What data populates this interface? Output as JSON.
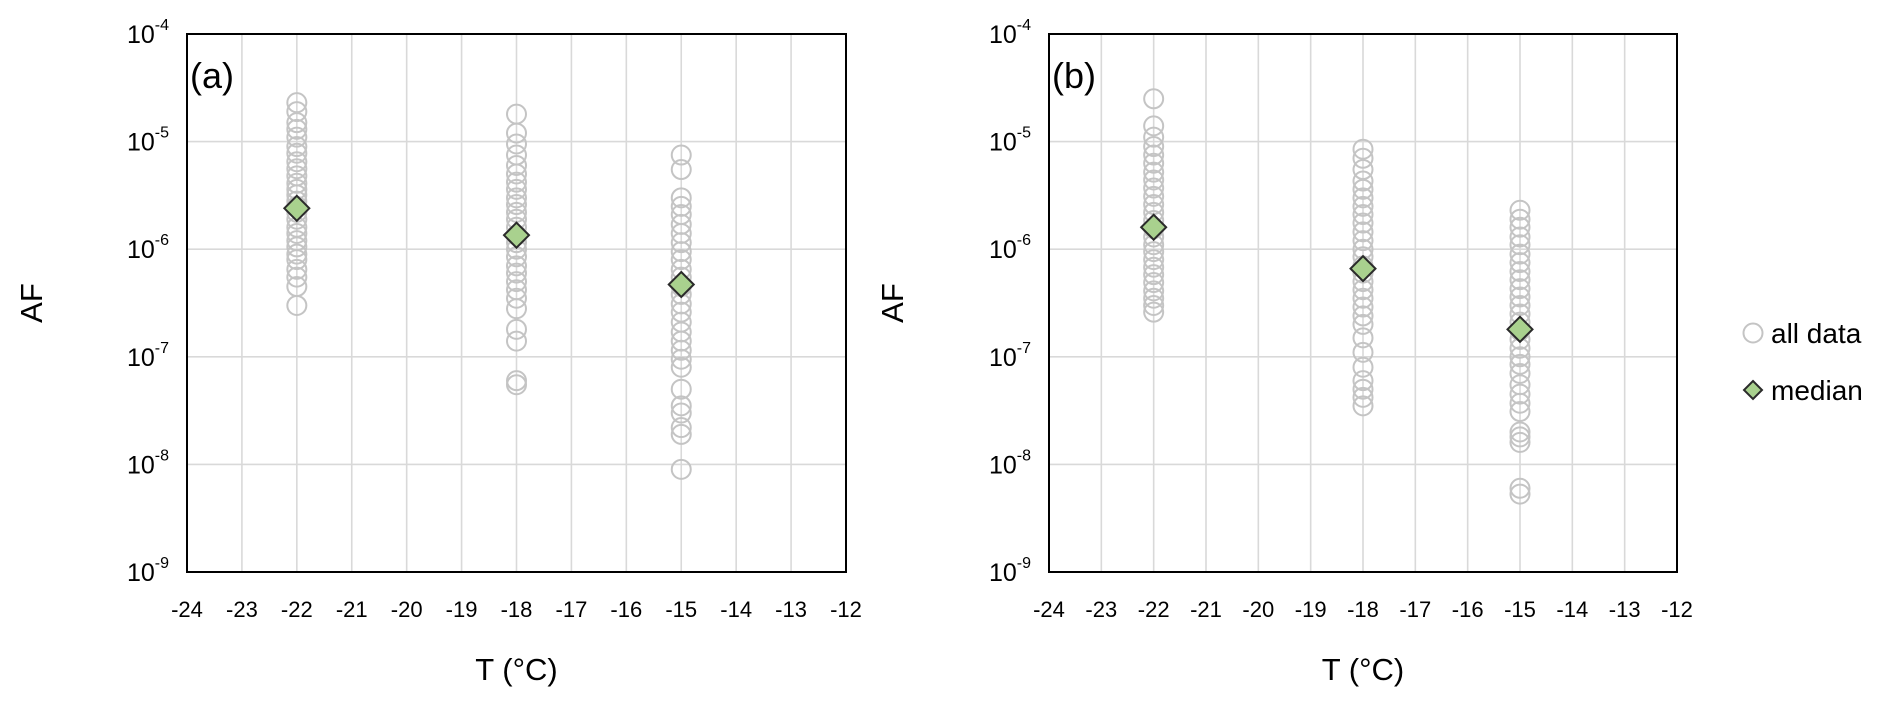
{
  "chart_data": [
    {
      "type": "scatter",
      "panel_label": "(a)",
      "xlabel": "T (°C)",
      "ylabel": "AF",
      "xlim": [
        -24,
        -12
      ],
      "ylim": [
        1e-09,
        0.0001
      ],
      "yscale": "log",
      "grid": true,
      "x_ticks": [
        "-24",
        "-23",
        "-22",
        "-21",
        "-20",
        "-19",
        "-18",
        "-17",
        "-16",
        "-15",
        "-14",
        "-13",
        "-12"
      ],
      "y_ticks": [
        {
          "base": "10",
          "exp": "-9"
        },
        {
          "base": "10",
          "exp": "-8"
        },
        {
          "base": "10",
          "exp": "-7"
        },
        {
          "base": "10",
          "exp": "-6"
        },
        {
          "base": "10",
          "exp": "-5"
        },
        {
          "base": "10",
          "exp": "-4"
        }
      ],
      "series": [
        {
          "name": "all data",
          "points": [
            {
              "x": -22,
              "y": [
                2.3e-05,
                1.9e-05,
                1.5e-05,
                1.3e-05,
                1.1e-05,
                9e-06,
                7.8e-06,
                6.5e-06,
                5.6e-06,
                4.8e-06,
                4.1e-06,
                3.6e-06,
                3.2e-06,
                2.8e-06,
                2.5e-06,
                2.2e-06,
                1.9e-06,
                1.6e-06,
                1.4e-06,
                1.2e-06,
                1.05e-06,
                9e-07,
                8e-07,
                6.5e-07,
                5.5e-07,
                4.5e-07,
                3e-07
              ]
            },
            {
              "x": -18,
              "y": [
                1.8e-05,
                1.2e-05,
                9.5e-06,
                7.5e-06,
                6e-06,
                5e-06,
                4.2e-06,
                3.6e-06,
                3e-06,
                2.6e-06,
                2.2e-06,
                1.9e-06,
                1.6e-06,
                1.35e-06,
                1.15e-06,
                1e-06,
                8.5e-07,
                7e-07,
                6e-07,
                5e-07,
                4.2e-07,
                3.5e-07,
                2.8e-07,
                1.8e-07,
                1.4e-07,
                6e-08,
                5.5e-08
              ]
            },
            {
              "x": -15,
              "y": [
                7.5e-06,
                5.5e-06,
                3e-06,
                2.5e-06,
                2.1e-06,
                1.7e-06,
                1.4e-06,
                1.15e-06,
                9.5e-07,
                8e-07,
                6.5e-07,
                5.5e-07,
                4.5e-07,
                3.8e-07,
                3.1e-07,
                2.6e-07,
                2.1e-07,
                1.7e-07,
                1.4e-07,
                1.15e-07,
                9.5e-08,
                8e-08,
                5e-08,
                3.5e-08,
                3e-08,
                2.2e-08,
                1.9e-08,
                9e-09
              ]
            }
          ]
        },
        {
          "name": "median",
          "points": [
            {
              "x": -22,
              "y": 2.4e-06
            },
            {
              "x": -18,
              "y": 1.35e-06
            },
            {
              "x": -15,
              "y": 4.7e-07
            }
          ]
        }
      ]
    },
    {
      "type": "scatter",
      "panel_label": "(b)",
      "xlabel": "T (°C)",
      "ylabel": "AF",
      "xlim": [
        -24,
        -12
      ],
      "ylim": [
        1e-09,
        0.0001
      ],
      "yscale": "log",
      "grid": true,
      "x_ticks": [
        "-24",
        "-23",
        "-22",
        "-21",
        "-20",
        "-19",
        "-18",
        "-17",
        "-16",
        "-15",
        "-14",
        "-13",
        "-12"
      ],
      "y_ticks": [
        {
          "base": "10",
          "exp": "-9"
        },
        {
          "base": "10",
          "exp": "-8"
        },
        {
          "base": "10",
          "exp": "-7"
        },
        {
          "base": "10",
          "exp": "-6"
        },
        {
          "base": "10",
          "exp": "-5"
        },
        {
          "base": "10",
          "exp": "-4"
        }
      ],
      "series": [
        {
          "name": "all data",
          "points": [
            {
              "x": -22,
              "y": [
                2.5e-05,
                1.4e-05,
                1.1e-05,
                9e-06,
                7.5e-06,
                6.3e-06,
                5.2e-06,
                4.4e-06,
                3.7e-06,
                3.1e-06,
                2.6e-06,
                2.2e-06,
                1.85e-06,
                1.55e-06,
                1.3e-06,
                1.1e-06,
                9.5e-07,
                8e-07,
                6.8e-07,
                5.8e-07,
                4.9e-07,
                4.1e-07,
                3.5e-07,
                3e-07,
                2.6e-07
              ]
            },
            {
              "x": -18,
              "y": [
                8.5e-06,
                7e-06,
                5.5e-06,
                4.3e-06,
                3.6e-06,
                3e-06,
                2.5e-06,
                2.1e-06,
                1.75e-06,
                1.45e-06,
                1.2e-06,
                1e-06,
                8.5e-07,
                7e-07,
                6e-07,
                5e-07,
                4.2e-07,
                3.5e-07,
                2.9e-07,
                2.4e-07,
                2e-07,
                1.5e-07,
                1.1e-07,
                8e-08,
                6e-08,
                5e-08,
                4.2e-08,
                3.5e-08
              ]
            },
            {
              "x": -15,
              "y": [
                2.3e-06,
                1.9e-06,
                1.6e-06,
                1.3e-06,
                1.1e-06,
                9e-07,
                7.5e-07,
                6.2e-07,
                5.2e-07,
                4.3e-07,
                3.6e-07,
                3e-07,
                2.5e-07,
                2.1e-07,
                1.75e-07,
                1.45e-07,
                1.2e-07,
                1e-07,
                8.5e-08,
                7e-08,
                5.5e-08,
                4.5e-08,
                3.7e-08,
                3.1e-08,
                2e-08,
                1.8e-08,
                1.6e-08,
                6e-09,
                5.3e-09
              ]
            }
          ]
        },
        {
          "name": "median",
          "points": [
            {
              "x": -22,
              "y": 1.6e-06
            },
            {
              "x": -18,
              "y": 6.6e-07
            },
            {
              "x": -15,
              "y": 1.8e-07
            }
          ]
        }
      ]
    }
  ],
  "legend": {
    "placement": "right",
    "items": [
      {
        "label": "all data",
        "marker": "open-circle"
      },
      {
        "label": "median",
        "marker": "diamond"
      }
    ]
  },
  "colors": {
    "all_data_stroke": "#c4c4c4",
    "median_fill": "#a9d18e",
    "median_stroke": "#2b2b2b",
    "grid": "#d9d9d9",
    "axis": "#000000"
  }
}
